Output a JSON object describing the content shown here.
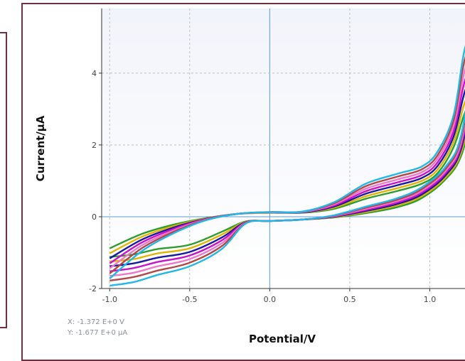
{
  "readout": {
    "x_text": "X: -1.372 E+0 V",
    "y_text": "Y: -1.677 E+0 μA"
  },
  "colors": {
    "frame": "#6e3142",
    "plot_bg_top": "#f2f4fb",
    "plot_bg_bottom": "#ffffff",
    "zero_lines": "#5b9bd5",
    "grid": "#b9bec8"
  },
  "chart_data": {
    "type": "line",
    "title": "",
    "xlabel": "Potential/V",
    "ylabel": "Current/μA",
    "xlim": [
      -1.05,
      1.3
    ],
    "ylim": [
      -2.0,
      5.8
    ],
    "xticks": [
      -1.0,
      -0.5,
      0.0,
      0.5,
      1.0
    ],
    "xtick_labels": [
      "-1.0",
      "-0.5",
      "0.0",
      "0.5",
      "1.0"
    ],
    "yticks": [
      -2,
      0,
      2,
      4
    ],
    "ytick_labels": [
      "-2",
      "0",
      "2",
      "4"
    ],
    "grid": true,
    "zero_lines": true,
    "legend": "none",
    "series": [
      {
        "color": "#2e9d2e",
        "forward": [
          [
            -1.0,
            -0.88
          ],
          [
            -0.8,
            -0.48
          ],
          [
            -0.6,
            -0.22
          ],
          [
            -0.4,
            -0.04
          ],
          [
            -0.2,
            0.08
          ],
          [
            0.0,
            0.11
          ],
          [
            0.2,
            0.11
          ],
          [
            0.4,
            0.22
          ],
          [
            0.6,
            0.5
          ],
          [
            0.8,
            0.72
          ],
          [
            0.95,
            0.92
          ],
          [
            1.05,
            1.22
          ],
          [
            1.15,
            1.95
          ],
          [
            1.22,
            2.9
          ],
          [
            1.3,
            3.5
          ]
        ],
        "reverse": [
          [
            1.3,
            3.5
          ],
          [
            1.2,
            1.75
          ],
          [
            1.1,
            1.05
          ],
          [
            0.95,
            0.52
          ],
          [
            0.8,
            0.27
          ],
          [
            0.6,
            0.1
          ],
          [
            0.4,
            -0.02
          ],
          [
            0.2,
            -0.08
          ],
          [
            0.0,
            -0.12
          ],
          [
            -0.15,
            -0.13
          ],
          [
            -0.3,
            -0.42
          ],
          [
            -0.5,
            -0.78
          ],
          [
            -0.7,
            -0.9
          ],
          [
            -0.85,
            -1.05
          ],
          [
            -1.0,
            -1.12
          ]
        ]
      },
      {
        "color": "#e0b400",
        "forward": [
          [
            -1.0,
            -1.02
          ],
          [
            -0.8,
            -0.56
          ],
          [
            -0.6,
            -0.26
          ],
          [
            -0.4,
            -0.05
          ],
          [
            -0.2,
            0.08
          ],
          [
            0.0,
            0.11
          ],
          [
            0.2,
            0.12
          ],
          [
            0.4,
            0.25
          ],
          [
            0.6,
            0.57
          ],
          [
            0.8,
            0.8
          ],
          [
            0.95,
            1.0
          ],
          [
            1.05,
            1.32
          ],
          [
            1.15,
            2.1
          ],
          [
            1.22,
            3.2
          ],
          [
            1.3,
            3.85
          ]
        ],
        "reverse": [
          [
            1.3,
            3.85
          ],
          [
            1.2,
            1.85
          ],
          [
            1.1,
            1.1
          ],
          [
            0.95,
            0.57
          ],
          [
            0.8,
            0.32
          ],
          [
            0.6,
            0.13
          ],
          [
            0.4,
            -0.01
          ],
          [
            0.2,
            -0.08
          ],
          [
            0.0,
            -0.12
          ],
          [
            -0.15,
            -0.14
          ],
          [
            -0.3,
            -0.5
          ],
          [
            -0.5,
            -0.88
          ],
          [
            -0.7,
            -1.02
          ],
          [
            -0.85,
            -1.18
          ],
          [
            -1.0,
            -1.25
          ]
        ]
      },
      {
        "color": "#1a1aa0",
        "forward": [
          [
            -1.0,
            -1.16
          ],
          [
            -0.8,
            -0.64
          ],
          [
            -0.6,
            -0.3
          ],
          [
            -0.4,
            -0.06
          ],
          [
            -0.2,
            0.08
          ],
          [
            0.0,
            0.12
          ],
          [
            0.2,
            0.12
          ],
          [
            0.4,
            0.28
          ],
          [
            0.6,
            0.64
          ],
          [
            0.8,
            0.88
          ],
          [
            0.95,
            1.08
          ],
          [
            1.05,
            1.42
          ],
          [
            1.15,
            2.25
          ],
          [
            1.22,
            3.5
          ],
          [
            1.3,
            4.2
          ]
        ],
        "reverse": [
          [
            1.3,
            4.2
          ],
          [
            1.2,
            1.95
          ],
          [
            1.1,
            1.16
          ],
          [
            0.95,
            0.62
          ],
          [
            0.8,
            0.36
          ],
          [
            0.6,
            0.16
          ],
          [
            0.4,
            0.0
          ],
          [
            0.2,
            -0.08
          ],
          [
            0.0,
            -0.12
          ],
          [
            -0.15,
            -0.15
          ],
          [
            -0.3,
            -0.58
          ],
          [
            -0.5,
            -0.98
          ],
          [
            -0.7,
            -1.14
          ],
          [
            -0.85,
            -1.3
          ],
          [
            -1.0,
            -1.38
          ]
        ]
      },
      {
        "color": "#cc11cc",
        "forward": [
          [
            -1.0,
            -1.3
          ],
          [
            -0.8,
            -0.72
          ],
          [
            -0.6,
            -0.34
          ],
          [
            -0.4,
            -0.07
          ],
          [
            -0.2,
            0.08
          ],
          [
            0.0,
            0.12
          ],
          [
            0.2,
            0.13
          ],
          [
            0.4,
            0.31
          ],
          [
            0.6,
            0.71
          ],
          [
            0.8,
            0.96
          ],
          [
            0.95,
            1.16
          ],
          [
            1.05,
            1.52
          ],
          [
            1.15,
            2.4
          ],
          [
            1.22,
            3.8
          ],
          [
            1.3,
            4.55
          ]
        ],
        "reverse": [
          [
            1.3,
            4.55
          ],
          [
            1.2,
            2.05
          ],
          [
            1.1,
            1.22
          ],
          [
            0.95,
            0.67
          ],
          [
            0.8,
            0.4
          ],
          [
            0.6,
            0.19
          ],
          [
            0.4,
            0.01
          ],
          [
            0.2,
            -0.08
          ],
          [
            0.0,
            -0.12
          ],
          [
            -0.15,
            -0.16
          ],
          [
            -0.3,
            -0.66
          ],
          [
            -0.5,
            -1.08
          ],
          [
            -0.7,
            -1.26
          ],
          [
            -0.85,
            -1.43
          ],
          [
            -1.0,
            -1.52
          ]
        ]
      },
      {
        "color": "#f077c8",
        "forward": [
          [
            -1.0,
            -1.44
          ],
          [
            -0.8,
            -0.8
          ],
          [
            -0.6,
            -0.38
          ],
          [
            -0.4,
            -0.08
          ],
          [
            -0.2,
            0.08
          ],
          [
            0.0,
            0.12
          ],
          [
            0.2,
            0.13
          ],
          [
            0.4,
            0.34
          ],
          [
            0.6,
            0.78
          ],
          [
            0.8,
            1.04
          ],
          [
            0.95,
            1.24
          ],
          [
            1.05,
            1.62
          ],
          [
            1.15,
            2.55
          ],
          [
            1.22,
            4.1
          ],
          [
            1.3,
            4.85
          ]
        ],
        "reverse": [
          [
            1.3,
            4.85
          ],
          [
            1.2,
            2.15
          ],
          [
            1.1,
            1.28
          ],
          [
            0.95,
            0.72
          ],
          [
            0.8,
            0.44
          ],
          [
            0.6,
            0.22
          ],
          [
            0.4,
            0.02
          ],
          [
            0.2,
            -0.08
          ],
          [
            0.0,
            -0.12
          ],
          [
            -0.15,
            -0.17
          ],
          [
            -0.3,
            -0.74
          ],
          [
            -0.5,
            -1.18
          ],
          [
            -0.7,
            -1.38
          ],
          [
            -0.85,
            -1.56
          ],
          [
            -1.0,
            -1.65
          ]
        ]
      },
      {
        "color": "#b34747",
        "forward": [
          [
            -1.0,
            -1.58
          ],
          [
            -0.8,
            -0.88
          ],
          [
            -0.6,
            -0.42
          ],
          [
            -0.4,
            -0.09
          ],
          [
            -0.2,
            0.08
          ],
          [
            0.0,
            0.13
          ],
          [
            0.2,
            0.14
          ],
          [
            0.4,
            0.37
          ],
          [
            0.6,
            0.85
          ],
          [
            0.8,
            1.12
          ],
          [
            0.95,
            1.32
          ],
          [
            1.05,
            1.72
          ],
          [
            1.15,
            2.7
          ],
          [
            1.22,
            4.4
          ],
          [
            1.3,
            5.1
          ]
        ],
        "reverse": [
          [
            1.3,
            5.1
          ],
          [
            1.2,
            2.25
          ],
          [
            1.1,
            1.34
          ],
          [
            0.95,
            0.77
          ],
          [
            0.8,
            0.48
          ],
          [
            0.6,
            0.25
          ],
          [
            0.4,
            0.03
          ],
          [
            0.2,
            -0.08
          ],
          [
            0.0,
            -0.12
          ],
          [
            -0.15,
            -0.18
          ],
          [
            -0.3,
            -0.82
          ],
          [
            -0.5,
            -1.28
          ],
          [
            -0.7,
            -1.5
          ],
          [
            -0.85,
            -1.68
          ],
          [
            -1.0,
            -1.78
          ]
        ]
      },
      {
        "color": "#21b7e8",
        "forward": [
          [
            -1.0,
            -1.72
          ],
          [
            -0.8,
            -0.96
          ],
          [
            -0.6,
            -0.46
          ],
          [
            -0.4,
            -0.1
          ],
          [
            -0.2,
            0.08
          ],
          [
            0.0,
            0.13
          ],
          [
            0.2,
            0.14
          ],
          [
            0.4,
            0.4
          ],
          [
            0.6,
            0.92
          ],
          [
            0.8,
            1.2
          ],
          [
            0.95,
            1.4
          ],
          [
            1.05,
            1.82
          ],
          [
            1.15,
            2.85
          ],
          [
            1.22,
            4.7
          ],
          [
            1.3,
            5.35
          ]
        ],
        "reverse": [
          [
            1.3,
            5.35
          ],
          [
            1.2,
            2.35
          ],
          [
            1.1,
            1.4
          ],
          [
            0.95,
            0.82
          ],
          [
            0.8,
            0.52
          ],
          [
            0.6,
            0.28
          ],
          [
            0.4,
            0.04
          ],
          [
            0.2,
            -0.08
          ],
          [
            0.0,
            -0.12
          ],
          [
            -0.15,
            -0.19
          ],
          [
            -0.3,
            -0.9
          ],
          [
            -0.5,
            -1.38
          ],
          [
            -0.7,
            -1.62
          ],
          [
            -0.85,
            -1.82
          ],
          [
            -1.0,
            -1.92
          ]
        ]
      }
    ]
  }
}
